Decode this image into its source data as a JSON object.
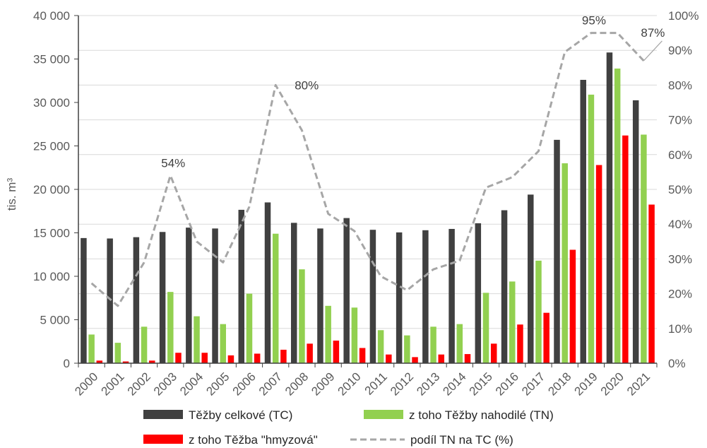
{
  "chart_data": {
    "type": "bar",
    "categories": [
      "2000",
      "2001",
      "2002",
      "2003",
      "2004",
      "2005",
      "2006",
      "2007",
      "2008",
      "2009",
      "2010",
      "2011",
      "2012",
      "2013",
      "2014",
      "2015",
      "2016",
      "2017",
      "2018",
      "2019",
      "2020",
      "2021"
    ],
    "series": [
      {
        "name": "Těžby celkové (TC)",
        "type": "bar",
        "axis": "left",
        "color": "#404040",
        "values": [
          14400,
          14350,
          14500,
          15100,
          15600,
          15500,
          17650,
          18500,
          16150,
          15500,
          16700,
          15350,
          15050,
          15300,
          15450,
          16100,
          17600,
          19400,
          25700,
          32600,
          35750,
          30250
        ]
      },
      {
        "name": "z toho Těžby nahodilé (TN)",
        "type": "bar",
        "axis": "left",
        "color": "#92d050",
        "values": [
          3300,
          2350,
          4200,
          8200,
          5400,
          4500,
          8000,
          14900,
          10800,
          6600,
          6400,
          3800,
          3200,
          4200,
          4500,
          8100,
          9400,
          11800,
          23000,
          30900,
          33900,
          26300
        ]
      },
      {
        "name": "z toho Těžba \"hmyzová\"",
        "type": "bar",
        "axis": "left",
        "color": "#ff0000",
        "values": [
          300,
          200,
          300,
          1200,
          1200,
          900,
          1100,
          1550,
          2250,
          2600,
          1750,
          1000,
          700,
          1000,
          1050,
          2250,
          4450,
          5800,
          13050,
          22800,
          26200,
          18250
        ]
      },
      {
        "name": "podíl TN na TC (%)",
        "type": "line",
        "axis": "right",
        "color": "#a6a6a6",
        "values": [
          23,
          16.5,
          29,
          54,
          35,
          29,
          45,
          80,
          67,
          43,
          38,
          25,
          21,
          27,
          29.5,
          50.5,
          53.5,
          61,
          89.5,
          95,
          95,
          87
        ]
      }
    ],
    "ylabel": "tis. m³",
    "ylim": [
      0,
      40000
    ],
    "y_ticks": [
      "0",
      "5 000",
      "10 000",
      "15 000",
      "20 000",
      "25 000",
      "30 000",
      "35 000",
      "40 000"
    ],
    "y2lim": [
      0,
      100
    ],
    "y2_ticks": [
      "0%",
      "10%",
      "20%",
      "30%",
      "40%",
      "50%",
      "60%",
      "70%",
      "80%",
      "90%",
      "100%"
    ],
    "annotations": [
      {
        "index": 3,
        "text": "54%"
      },
      {
        "index": 7,
        "text": "80%"
      },
      {
        "index": 19,
        "text": "95%"
      },
      {
        "index": 21,
        "text": "87%"
      }
    ],
    "gridlines": true,
    "legend_position": "bottom"
  }
}
